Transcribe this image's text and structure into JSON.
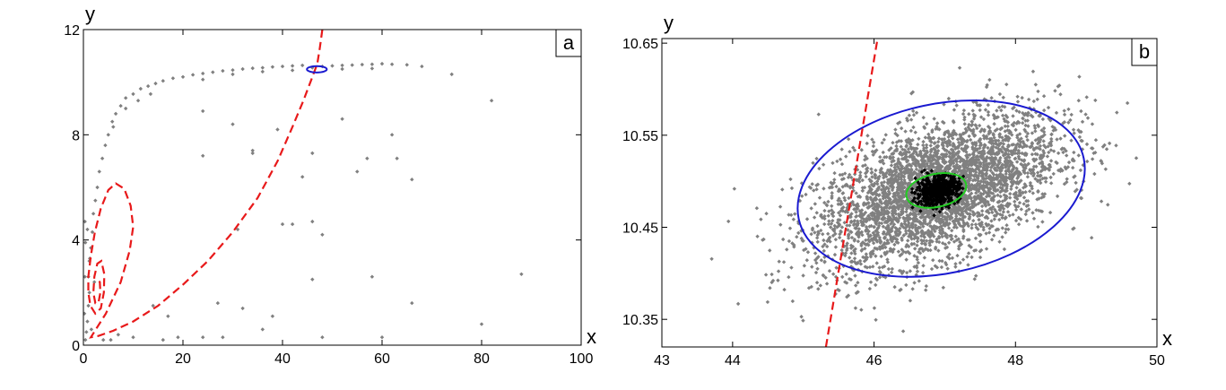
{
  "chart_data": [
    {
      "type": "scatter",
      "panel_label": "a",
      "xlabel": "x",
      "ylabel": "y",
      "xlim": [
        0,
        100
      ],
      "ylim": [
        0,
        12
      ],
      "xticks": [
        0,
        20,
        40,
        60,
        80,
        100
      ],
      "yticks": [
        0,
        4,
        8,
        12
      ],
      "grid": false,
      "colors": {
        "points": "#808080",
        "manifold": "#e8191a",
        "blue_ellipse": "#1a1ad0"
      },
      "series": [
        {
          "kind": "points",
          "points": [
            [
              0.4,
              0.2
            ],
            [
              0.6,
              0.5
            ],
            [
              0.8,
              0.9
            ],
            [
              1.0,
              1.5
            ],
            [
              1.2,
              2.0
            ],
            [
              1.0,
              2.6
            ],
            [
              1.2,
              3.2
            ],
            [
              1.5,
              3.7
            ],
            [
              1.8,
              4.3
            ],
            [
              2.0,
              5.0
            ],
            [
              2.4,
              5.5
            ],
            [
              2.8,
              6.0
            ],
            [
              3.2,
              6.6
            ],
            [
              3.8,
              7.1
            ],
            [
              4.4,
              7.6
            ],
            [
              5.0,
              8.0
            ],
            [
              5.8,
              8.5
            ],
            [
              6.5,
              8.8
            ],
            [
              7.5,
              9.1
            ],
            [
              8.5,
              9.4
            ],
            [
              10,
              9.55
            ],
            [
              11.5,
              9.75
            ],
            [
              13,
              9.85
            ],
            [
              14.5,
              9.95
            ],
            [
              16,
              10.05
            ],
            [
              18,
              10.15
            ],
            [
              20,
              10.2
            ],
            [
              22,
              10.28
            ],
            [
              24,
              10.33
            ],
            [
              26,
              10.38
            ],
            [
              28,
              10.43
            ],
            [
              30,
              10.46
            ],
            [
              32,
              10.5
            ],
            [
              34,
              10.53
            ],
            [
              36,
              10.55
            ],
            [
              38,
              10.58
            ],
            [
              40,
              10.6
            ],
            [
              42,
              10.62
            ],
            [
              44,
              10.64
            ],
            [
              46,
              10.55
            ],
            [
              48,
              10.6
            ],
            [
              50,
              10.62
            ],
            [
              52,
              10.64
            ],
            [
              54,
              10.65
            ],
            [
              56,
              10.67
            ],
            [
              58,
              10.68
            ],
            [
              60,
              10.7
            ],
            [
              62,
              10.68
            ],
            [
              65,
              10.66
            ],
            [
              68,
              10.6
            ],
            [
              6,
              8.3
            ],
            [
              8.5,
              9.0
            ],
            [
              11,
              9.3
            ],
            [
              13.5,
              9.55
            ],
            [
              24,
              10.1
            ],
            [
              30,
              10.3
            ],
            [
              36,
              10.4
            ],
            [
              42,
              10.45
            ],
            [
              52,
              10.5
            ],
            [
              58,
              10.52
            ],
            [
              74,
              10.3
            ],
            [
              82,
              9.3
            ],
            [
              62,
              8.0
            ],
            [
              39,
              8.2
            ],
            [
              30,
              8.4
            ],
            [
              24,
              8.9
            ],
            [
              57,
              7.1
            ],
            [
              46,
              7.3
            ],
            [
              34,
              7.4
            ],
            [
              66,
              6.3
            ],
            [
              55,
              6.6
            ],
            [
              44,
              6.4
            ],
            [
              42,
              4.6
            ],
            [
              46,
              4.7
            ],
            [
              31,
              4.4
            ],
            [
              0.8,
              4.4
            ],
            [
              0.4,
              3.9
            ],
            [
              1.3,
              3.3
            ],
            [
              0.3,
              2.6
            ],
            [
              2.2,
              2.4
            ],
            [
              88,
              2.7
            ],
            [
              58,
              2.6
            ],
            [
              46,
              2.5
            ],
            [
              66,
              1.6
            ],
            [
              32,
              1.4
            ],
            [
              38,
              1.1
            ],
            [
              27,
              1.6
            ],
            [
              14,
              1.5
            ],
            [
              17,
              1.1
            ],
            [
              80,
              0.8
            ],
            [
              36,
              0.6
            ],
            [
              48,
              0.3
            ],
            [
              60,
              0.3
            ],
            [
              16,
              0.2
            ],
            [
              19,
              0.3
            ],
            [
              28,
              0.3
            ],
            [
              24,
              0.3
            ],
            [
              7,
              0.4
            ],
            [
              4,
              0.2
            ],
            [
              10,
              0.3
            ],
            [
              0.3,
              4.7
            ],
            [
              1.6,
              0.6
            ],
            [
              0.2,
              1.2
            ],
            [
              5.5,
              0.2
            ],
            [
              48,
              4.2
            ],
            [
              63,
              7.1
            ],
            [
              24,
              7.2
            ],
            [
              52,
              8.6
            ],
            [
              34,
              7.3
            ],
            [
              40,
              4.6
            ]
          ]
        },
        {
          "kind": "dashed-curve",
          "name": "",
          "points": [
            [
              48.0,
              12.0
            ],
            [
              47.5,
              11.3
            ],
            [
              47.0,
              10.7
            ],
            [
              45.8,
              10.1
            ],
            [
              44.2,
              9.3
            ],
            [
              42.0,
              8.3
            ],
            [
              39.0,
              7.0
            ],
            [
              35.0,
              5.6
            ],
            [
              30.0,
              4.3
            ],
            [
              25.0,
              3.2
            ],
            [
              20.0,
              2.3
            ],
            [
              15.0,
              1.5
            ],
            [
              10.0,
              0.9
            ],
            [
              6.0,
              0.55
            ],
            [
              3.0,
              0.35
            ],
            [
              1.5,
              0.3
            ],
            [
              2.0,
              0.45
            ],
            [
              4.5,
              1.2
            ],
            [
              7.5,
              2.4
            ],
            [
              9.3,
              3.6
            ],
            [
              10.0,
              4.5
            ],
            [
              9.5,
              5.3
            ],
            [
              8.2,
              5.95
            ],
            [
              6.5,
              6.15
            ],
            [
              5.0,
              5.9
            ],
            [
              3.5,
              5.2
            ],
            [
              2.3,
              4.3
            ],
            [
              1.5,
              3.4
            ],
            [
              1.0,
              2.6
            ],
            [
              1.0,
              2.0
            ],
            [
              1.4,
              1.5
            ],
            [
              2.4,
              1.2
            ],
            [
              3.5,
              1.4
            ],
            [
              4.1,
              2.0
            ],
            [
              4.2,
              2.7
            ],
            [
              3.6,
              3.2
            ],
            [
              2.8,
              3.1
            ],
            [
              2.2,
              2.6
            ],
            [
              2.0,
              2.0
            ],
            [
              2.4,
              1.6
            ],
            [
              3.0,
              1.6
            ],
            [
              3.4,
              2.0
            ],
            [
              3.3,
              2.4
            ],
            [
              2.8,
              2.5
            ]
          ]
        },
        {
          "kind": "ellipse",
          "center": [
            46.9,
            10.49
          ],
          "rx": 2.0,
          "ry": 0.12
        }
      ]
    },
    {
      "type": "scatter",
      "panel_label": "b",
      "xlabel": "x",
      "ylabel": "y",
      "xlim": [
        43,
        50
      ],
      "ylim": [
        10.32,
        10.655
      ],
      "xticks": [
        43,
        44,
        46,
        48,
        50
      ],
      "yticks": [
        10.35,
        10.45,
        10.55,
        10.65
      ],
      "ytick_labels": [
        "10.35",
        "10.45",
        "10.55",
        "10.65"
      ],
      "grid": false,
      "colors": {
        "points": "#808080",
        "core": "#000000",
        "manifold": "#e8191a",
        "blue_ellipse": "#1a1ad0",
        "green_ellipse": "#22cc22"
      },
      "cloud": {
        "center": [
          46.9,
          10.49
        ],
        "spread_x": 0.85,
        "spread_y": 0.035,
        "tilt": 0.025,
        "count": 3800,
        "core_count": 600,
        "core_spread_x": 0.15,
        "core_spread_y": 0.008
      },
      "series": [
        {
          "kind": "ellipse",
          "color_key": "blue_ellipse",
          "center": [
            46.95,
            10.492
          ],
          "rx": 2.06,
          "ry": 0.092,
          "rotation_deg": -12
        },
        {
          "kind": "ellipse",
          "color_key": "green_ellipse",
          "center": [
            46.88,
            10.49
          ],
          "rx": 0.43,
          "ry": 0.018,
          "rotation_deg": -12
        },
        {
          "kind": "dashed-line",
          "points": [
            [
              45.32,
              10.32
            ],
            [
              46.05,
              10.655
            ]
          ]
        }
      ]
    }
  ]
}
